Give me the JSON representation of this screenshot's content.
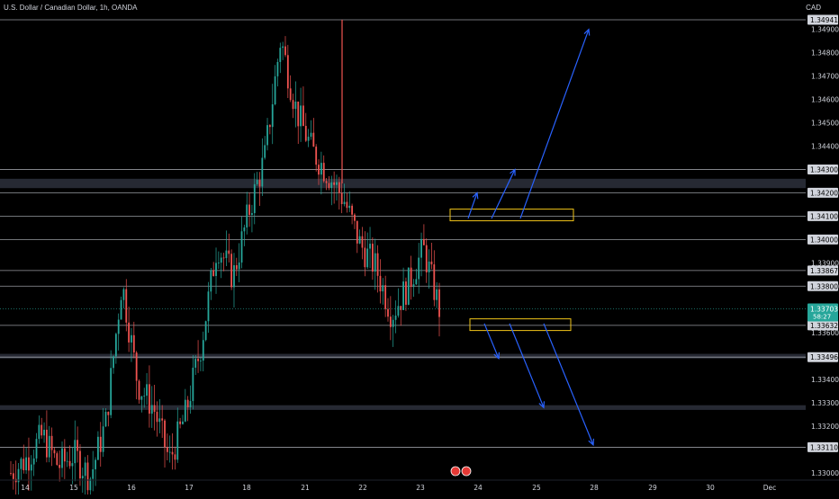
{
  "header": {
    "symbol_title": "U.S. Dollar / Canadian Dollar, 1h, OANDA",
    "currency": "CAD"
  },
  "colors": {
    "background": "#000000",
    "up_candle": "#26a69a",
    "down_candle": "#ef5350",
    "level_line": "#b2b5be",
    "zone_band": "#2a2e39",
    "projection_arrow": "#2962ff",
    "zone_box": "#f0c419",
    "last_price": "#26a69a",
    "axis_text": "#d1d4dc"
  },
  "chart_data": {
    "type": "candlestick",
    "timeframe": "1h",
    "ylim": [
      1.3295,
      1.3502
    ],
    "x_ticks": [
      "14",
      "15",
      "16",
      "17",
      "18",
      "21",
      "22",
      "23",
      "24",
      "25",
      "28",
      "29",
      "30",
      "Dec"
    ],
    "y_ticks": [
      "1.34941",
      "1.34900",
      "1.34800",
      "1.34700",
      "1.34600",
      "1.34500",
      "1.34400",
      "1.34300",
      "1.34200",
      "1.34100",
      "1.34000",
      "1.33900",
      "1.33867",
      "1.33800",
      "1.33703",
      "1.33632",
      "1.33600",
      "1.33496",
      "1.33400",
      "1.33300",
      "1.33200",
      "1.33110",
      "1.33000"
    ],
    "plain_ticks": [
      1.349,
      1.348,
      1.347,
      1.346,
      1.345,
      1.344,
      1.342,
      1.339,
      1.338,
      1.336,
      1.334,
      1.333,
      1.332,
      1.33
    ],
    "horizontal_levels": [
      1.34941,
      1.343,
      1.342,
      1.341,
      1.34,
      1.33867,
      1.338,
      1.33632,
      1.33496,
      1.3311
    ],
    "highlighted_levels": [
      1.34941,
      1.343,
      1.342,
      1.341,
      1.34,
      1.33867,
      1.338,
      1.33632,
      1.33496,
      1.3311
    ],
    "zones": [
      [
        1.3422,
        1.3426
      ],
      [
        1.3349,
        1.3351
      ],
      [
        1.3327,
        1.3329
      ]
    ],
    "last_price": 1.33703,
    "countdown": "58:27",
    "price_series": [
      [
        "14",
        1.33
      ],
      [
        "14",
        1.3306
      ],
      [
        "15",
        1.3316
      ],
      [
        "15",
        1.3303
      ],
      [
        "16",
        1.3308
      ],
      [
        "16",
        1.3298
      ],
      [
        "17",
        1.3322
      ],
      [
        "17",
        1.3382
      ],
      [
        "17",
        1.3338
      ],
      [
        "18",
        1.3328
      ],
      [
        "18",
        1.3305
      ],
      [
        "18",
        1.3325
      ],
      [
        "18",
        1.3355
      ],
      [
        "18",
        1.3398
      ],
      [
        "21",
        1.3384
      ],
      [
        "21",
        1.3412
      ],
      [
        "21",
        1.3435
      ],
      [
        "21",
        1.3486
      ],
      [
        "21",
        1.3455
      ],
      [
        "22",
        1.3438
      ],
      [
        "22",
        1.3428
      ],
      [
        "22",
        1.3417
      ],
      [
        "22",
        1.3398
      ],
      [
        "23",
        1.3388
      ],
      [
        "23",
        1.3368
      ],
      [
        "23",
        1.338
      ],
      [
        "23",
        1.3396
      ],
      [
        "23",
        1.33703
      ]
    ],
    "projections": [
      {
        "direction": "up",
        "target": 1.342
      },
      {
        "direction": "up",
        "target": 1.343
      },
      {
        "direction": "up",
        "target": 1.349
      },
      {
        "direction": "down",
        "target": 1.3349
      },
      {
        "direction": "down",
        "target": 1.3328
      },
      {
        "direction": "down",
        "target": 1.3312
      }
    ],
    "boxes": [
      {
        "name": "resistance-zone",
        "low": 1.3408,
        "high": 1.3413
      },
      {
        "name": "support-zone",
        "low": 1.3361,
        "high": 1.3366
      }
    ]
  }
}
